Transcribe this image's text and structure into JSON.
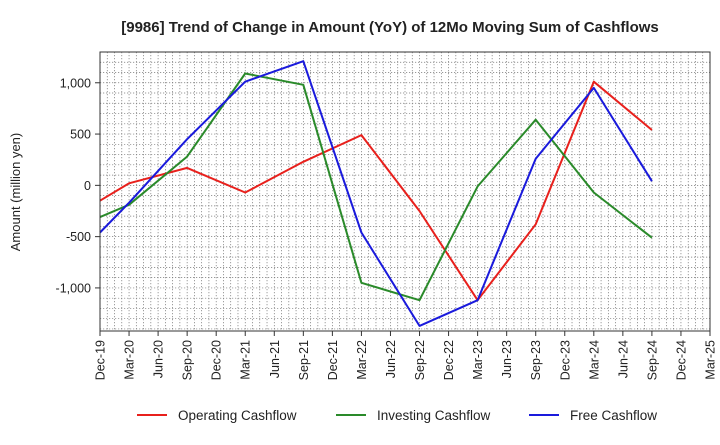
{
  "chart_data": {
    "type": "line",
    "title": "[9986]  Trend of Change in Amount (YoY) of 12Mo Moving Sum of Cashflows",
    "xlabel": "",
    "ylabel": "Amount (million yen)",
    "ylim": [
      -1420,
      1300
    ],
    "yticks": [
      1000,
      500,
      0,
      -500,
      -1000
    ],
    "ytick_labels": [
      "1,000",
      "500",
      "0",
      "-500",
      "-1,000"
    ],
    "categories": [
      "Dec-19",
      "Mar-20",
      "Jun-20",
      "Sep-20",
      "Dec-20",
      "Mar-21",
      "Jun-21",
      "Sep-21",
      "Dec-21",
      "Mar-22",
      "Jun-22",
      "Sep-22",
      "Dec-22",
      "Mar-23",
      "Jun-23",
      "Sep-23",
      "Dec-23",
      "Mar-24",
      "Jun-24",
      "Sep-24",
      "Dec-24",
      "Mar-25"
    ],
    "grid": true,
    "legend_position": "bottom",
    "series": [
      {
        "name": "Operating Cashflow",
        "color": "#e8201c",
        "values": [
          -150,
          20,
          null,
          170,
          null,
          -70,
          null,
          230,
          null,
          490,
          null,
          -250,
          null,
          -1120,
          null,
          -380,
          null,
          1010,
          null,
          540,
          null,
          null
        ]
      },
      {
        "name": "Investing Cashflow",
        "color": "#2a8a2a",
        "values": [
          -310,
          -190,
          null,
          280,
          null,
          1090,
          null,
          980,
          null,
          -950,
          null,
          -1120,
          null,
          -10,
          null,
          640,
          null,
          -70,
          null,
          -510,
          null,
          null
        ]
      },
      {
        "name": "Free Cashflow",
        "color": "#1a1adc",
        "values": [
          -460,
          -170,
          null,
          450,
          null,
          1010,
          null,
          1210,
          null,
          -460,
          null,
          -1370,
          null,
          -1120,
          null,
          260,
          null,
          950,
          null,
          40,
          null,
          null
        ]
      }
    ]
  }
}
